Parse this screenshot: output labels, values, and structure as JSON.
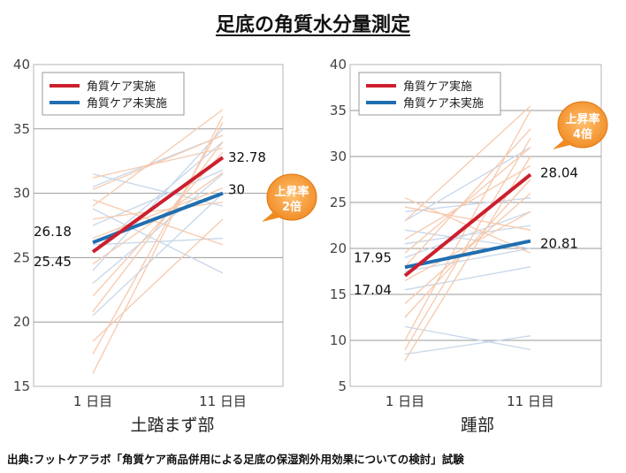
{
  "title": "足底の角質水分量測定",
  "source": "出典:フットケアラボ「角質ケア商品併用による足底の保湿剤外用効果についての検討」試験",
  "colors": {
    "care": "#cc1f2e",
    "nocare": "#1f6eb0",
    "care_faint": "#f6c9ad",
    "nocare_faint": "#c7d7ea",
    "badge": "#f08a22",
    "grid": "#9a9a9a"
  },
  "chart_data": [
    {
      "type": "line",
      "xlabel": "土踏まず部",
      "categories": [
        "1 日目",
        "11 日目"
      ],
      "ylim": [
        15,
        40
      ],
      "yticks": [
        15,
        20,
        25,
        30,
        35,
        40
      ],
      "grid": true,
      "legend_position": "top-left",
      "series": [
        {
          "name": "角質ケア実施",
          "values": [
            25.45,
            32.78
          ],
          "labels": [
            "25.45",
            "32.78"
          ]
        },
        {
          "name": "角質ケア未実施",
          "values": [
            26.18,
            30
          ],
          "labels": [
            "26.18",
            "30"
          ]
        }
      ],
      "individual_care": [
        [
          16.0,
          36.0
        ],
        [
          17.5,
          35.5
        ],
        [
          20.8,
          34.0
        ],
        [
          22.0,
          33.2
        ],
        [
          24.5,
          31.6
        ],
        [
          26.5,
          30.4
        ],
        [
          28.0,
          29.3
        ],
        [
          29.0,
          36.5
        ],
        [
          30.3,
          34.5
        ],
        [
          31.2,
          33.5
        ],
        [
          29.5,
          26.0
        ],
        [
          18.5,
          28.0
        ]
      ],
      "individual_nocare": [
        [
          20.5,
          30.0
        ],
        [
          23.0,
          31.5
        ],
        [
          24.0,
          35.0
        ],
        [
          25.5,
          34.0
        ],
        [
          27.5,
          31.8
        ],
        [
          28.8,
          23.8
        ],
        [
          30.5,
          34.5
        ],
        [
          31.5,
          29.0
        ],
        [
          26.0,
          26.5
        ]
      ],
      "badge": {
        "lines": [
          "上昇率",
          "2倍"
        ]
      }
    },
    {
      "type": "line",
      "xlabel": "踵部",
      "categories": [
        "1 日目",
        "11 日目"
      ],
      "ylim": [
        5,
        40
      ],
      "yticks": [
        5,
        10,
        15,
        20,
        25,
        30,
        35,
        40
      ],
      "grid": true,
      "legend_position": "top-left",
      "series": [
        {
          "name": "角質ケア実施",
          "values": [
            17.04,
            28.04
          ],
          "labels": [
            "17.04",
            "28.04"
          ]
        },
        {
          "name": "角質ケア未実施",
          "values": [
            17.95,
            20.81
          ],
          "labels": [
            "17.95",
            "20.81"
          ]
        }
      ],
      "individual_care": [
        [
          7.8,
          30.0
        ],
        [
          9.0,
          32.0
        ],
        [
          10.0,
          35.0
        ],
        [
          12.5,
          27.5
        ],
        [
          14.0,
          26.0
        ],
        [
          16.5,
          24.0
        ],
        [
          18.0,
          33.0
        ],
        [
          19.5,
          31.0
        ],
        [
          21.0,
          29.0
        ],
        [
          23.0,
          35.5
        ],
        [
          24.5,
          22.0
        ],
        [
          25.5,
          19.5
        ]
      ],
      "individual_nocare": [
        [
          8.5,
          10.5
        ],
        [
          11.5,
          9.0
        ],
        [
          15.5,
          18.0
        ],
        [
          17.5,
          20.0
        ],
        [
          19.0,
          24.0
        ],
        [
          20.5,
          22.5
        ],
        [
          23.0,
          31.0
        ],
        [
          24.0,
          25.5
        ],
        [
          22.0,
          20.0
        ]
      ],
      "badge": {
        "lines": [
          "上昇率",
          "4倍"
        ]
      }
    }
  ]
}
